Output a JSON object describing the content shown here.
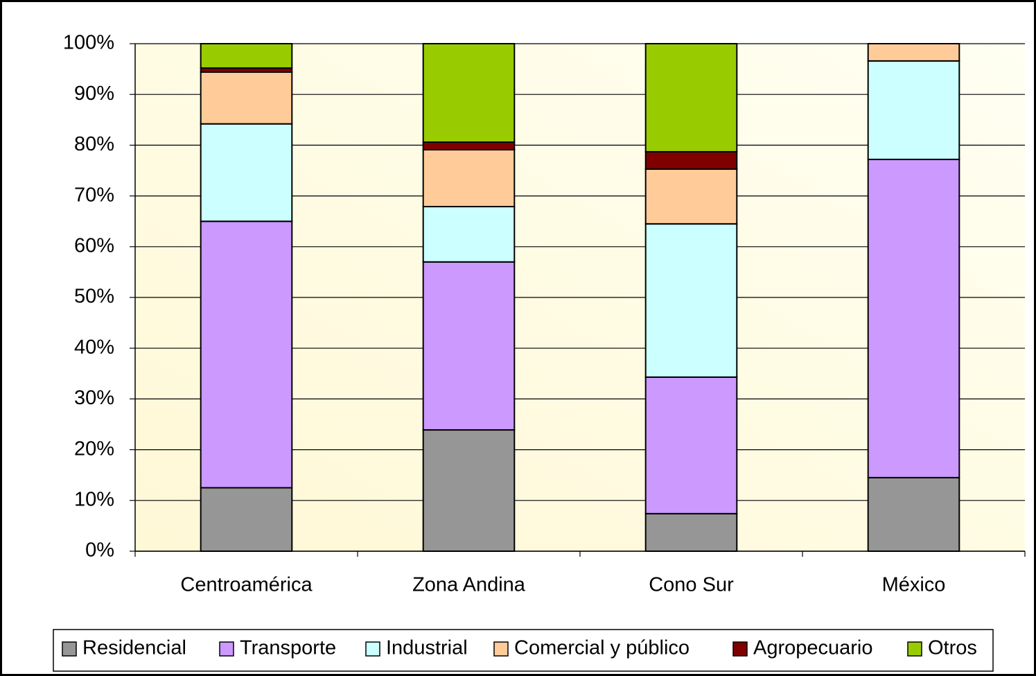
{
  "chart_data": {
    "type": "stacked_bar",
    "categories": [
      "Centroamérica",
      "Zona Andina",
      "Cono Sur",
      "México"
    ],
    "series": [
      {
        "name": "Residencial",
        "color": "#969696",
        "values": [
          12.5,
          23.9,
          7.4,
          14.5
        ]
      },
      {
        "name": "Transporte",
        "color": "#cc99ff",
        "values": [
          52.5,
          33.1,
          26.9,
          62.7
        ]
      },
      {
        "name": "Industrial",
        "color": "#ccffff",
        "values": [
          19.2,
          10.9,
          30.2,
          19.4
        ]
      },
      {
        "name": "Comercial y público",
        "color": "#ffcc99",
        "values": [
          10.2,
          11.2,
          10.8,
          3.4
        ]
      },
      {
        "name": "Agropecuario",
        "color": "#800000",
        "values": [
          0.8,
          1.5,
          3.4,
          0
        ]
      },
      {
        "name": "Otros",
        "color": "#99cc00",
        "values": [
          4.8,
          19.4,
          21.3,
          0
        ]
      }
    ],
    "ylim": [
      0,
      100
    ],
    "yticks": [
      {
        "value": 0,
        "label": "0%"
      },
      {
        "value": 10,
        "label": "10%"
      },
      {
        "value": 20,
        "label": "20%"
      },
      {
        "value": 30,
        "label": "30%"
      },
      {
        "value": 40,
        "label": "40%"
      },
      {
        "value": 50,
        "label": "50%"
      },
      {
        "value": 60,
        "label": "60%"
      },
      {
        "value": 70,
        "label": "70%"
      },
      {
        "value": 80,
        "label": "80%"
      },
      {
        "value": 90,
        "label": "90%"
      },
      {
        "value": 100,
        "label": "100%"
      }
    ],
    "grid": true,
    "legend": "bottom"
  }
}
